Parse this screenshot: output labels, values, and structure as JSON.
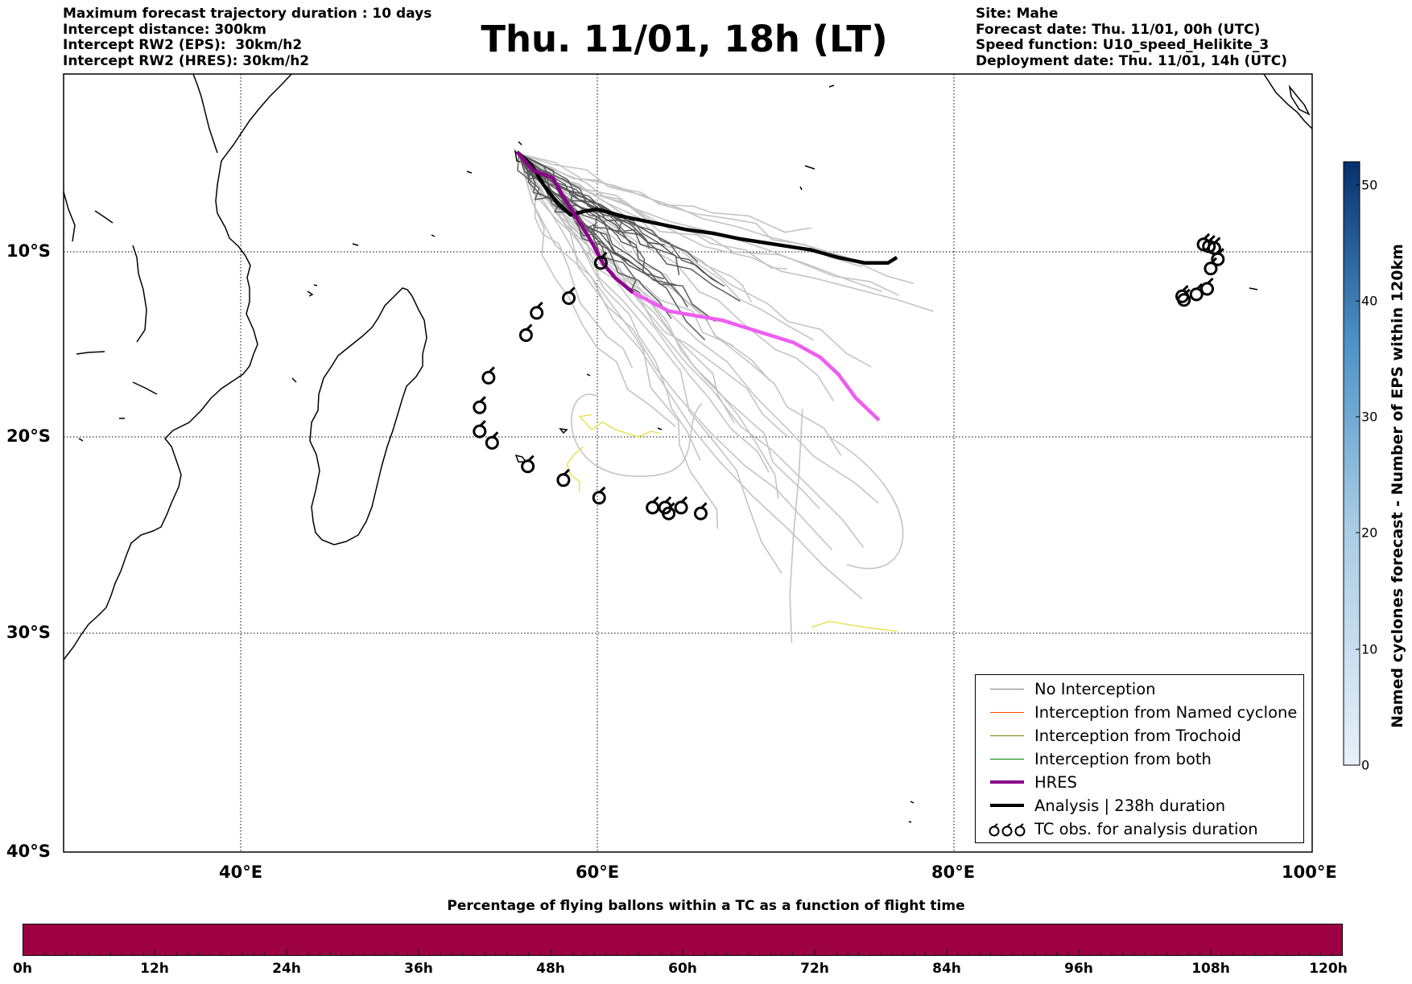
{
  "header_left": [
    "Maximum forecast trajectory duration : 10 days",
    "Intercept distance: 300km",
    "Intercept RW2 (EPS):  30km/h2",
    "Intercept RW2 (HRES): 30km/h2"
  ],
  "title": "Thu. 11/01, 18h (LT)",
  "header_right": [
    "Site: Mahe",
    "Forecast date: Thu. 11/01, 00h (UTC)",
    "Speed function: U10_speed_Helikite_3",
    "Deployment date: Thu. 11/01, 14h (UTC)"
  ],
  "map": {
    "lon_range": [
      30,
      100
    ],
    "lat_range": [
      0,
      -40
    ],
    "x_ticks": [
      "40°E",
      "60°E",
      "80°E",
      "100°E"
    ],
    "y_ticks": [
      "10°S",
      "20°S",
      "30°S",
      "40°S"
    ]
  },
  "legend": [
    {
      "label": "No Interception",
      "color": "#808080",
      "type": "line"
    },
    {
      "label": "Interception from Named cyclone",
      "color": "#ff4500",
      "type": "line"
    },
    {
      "label": "Interception from Trochoid",
      "color": "#808000",
      "type": "line"
    },
    {
      "label": "Interception from both",
      "color": "#008000",
      "type": "line"
    },
    {
      "label": "HRES",
      "color": "#8b008b",
      "type": "thick"
    },
    {
      "label": "Analysis | 238h duration",
      "color": "#000000",
      "type": "thick"
    },
    {
      "label": "TC obs. for analysis duration",
      "color": "#000000",
      "type": "symbol"
    }
  ],
  "colorbar_vertical": {
    "label": "Named cyclones forecast - Number of EPS within 120km",
    "ticks": [
      "0",
      "10",
      "20",
      "30",
      "40",
      "50"
    ],
    "range": [
      0,
      52
    ]
  },
  "colorbar_horizontal": {
    "title": "Percentage of flying ballons within a TC as a function of flight time",
    "color": "#9e0142",
    "ticks": [
      "0h",
      "12h",
      "24h",
      "36h",
      "48h",
      "60h",
      "72h",
      "84h",
      "96h",
      "108h",
      "120h"
    ]
  },
  "tracks": {
    "hres": [
      [
        55.5,
        -4.6
      ],
      [
        56.4,
        -5.6
      ],
      [
        57.5,
        -6.0
      ],
      [
        58.2,
        -7.2
      ],
      [
        59.0,
        -8.4
      ],
      [
        59.7,
        -9.5
      ],
      [
        60.3,
        -10.6
      ],
      [
        61.0,
        -11.4
      ],
      [
        62.0,
        -12.2
      ],
      [
        64.0,
        -13.2
      ],
      [
        67.0,
        -13.7
      ],
      [
        69.0,
        -14.3
      ],
      [
        71.0,
        -14.9
      ],
      [
        72.5,
        -15.7
      ],
      [
        73.5,
        -16.6
      ],
      [
        74.5,
        -17.9
      ],
      [
        75.8,
        -19.1
      ]
    ],
    "analysis": [
      [
        55.5,
        -4.6
      ],
      [
        56.3,
        -5.3
      ],
      [
        57.0,
        -6.4
      ],
      [
        57.8,
        -7.4
      ],
      [
        58.5,
        -8.0
      ],
      [
        59.3,
        -7.8
      ],
      [
        60.0,
        -7.7
      ],
      [
        61.5,
        -8.1
      ],
      [
        63.0,
        -8.4
      ],
      [
        65.0,
        -8.8
      ],
      [
        66.5,
        -9.0
      ],
      [
        68.0,
        -9.3
      ],
      [
        70.0,
        -9.6
      ],
      [
        72.0,
        -9.9
      ],
      [
        73.5,
        -10.3
      ],
      [
        75.0,
        -10.6
      ],
      [
        76.3,
        -10.6
      ],
      [
        76.8,
        -10.3
      ]
    ],
    "yellow": [
      [
        [
          59.7,
          -18.8
        ],
        [
          59.0,
          -18.9
        ],
        [
          59.7,
          -19.6
        ],
        [
          60.3,
          -19.2
        ],
        [
          61.0,
          -19.6
        ],
        [
          62.3,
          -20.0
        ],
        [
          63.0,
          -19.7
        ],
        [
          63.5,
          -19.8
        ]
      ],
      [
        [
          59.2,
          -20.5
        ],
        [
          58.7,
          -20.9
        ],
        [
          58.3,
          -21.4
        ],
        [
          58.5,
          -21.9
        ],
        [
          59.0,
          -22.3
        ],
        [
          59.0,
          -22.8
        ]
      ],
      [
        [
          72.0,
          -29.7
        ],
        [
          73.0,
          -29.4
        ],
        [
          75.0,
          -29.7
        ],
        [
          76.8,
          -29.9
        ]
      ]
    ]
  },
  "tc_obs": [
    [
      60.2,
      -10.6
    ],
    [
      58.4,
      -12.5
    ],
    [
      56.6,
      -13.3
    ],
    [
      56.0,
      -14.5
    ],
    [
      53.9,
      -16.8
    ],
    [
      53.4,
      -18.4
    ],
    [
      53.4,
      -19.7
    ],
    [
      54.1,
      -20.3
    ],
    [
      56.1,
      -21.5
    ],
    [
      58.1,
      -22.2
    ],
    [
      60.1,
      -23.1
    ],
    [
      63.1,
      -23.6
    ],
    [
      63.8,
      -23.6
    ],
    [
      64.7,
      -23.6
    ],
    [
      65.8,
      -23.9
    ],
    [
      64.0,
      -23.9
    ],
    [
      94.0,
      -9.6
    ],
    [
      94.3,
      -9.7
    ],
    [
      94.6,
      -9.8
    ],
    [
      94.8,
      -10.4
    ],
    [
      94.4,
      -10.9
    ],
    [
      94.2,
      -12.0
    ],
    [
      93.6,
      -12.3
    ],
    [
      92.8,
      -12.4
    ],
    [
      92.9,
      -12.6
    ]
  ]
}
